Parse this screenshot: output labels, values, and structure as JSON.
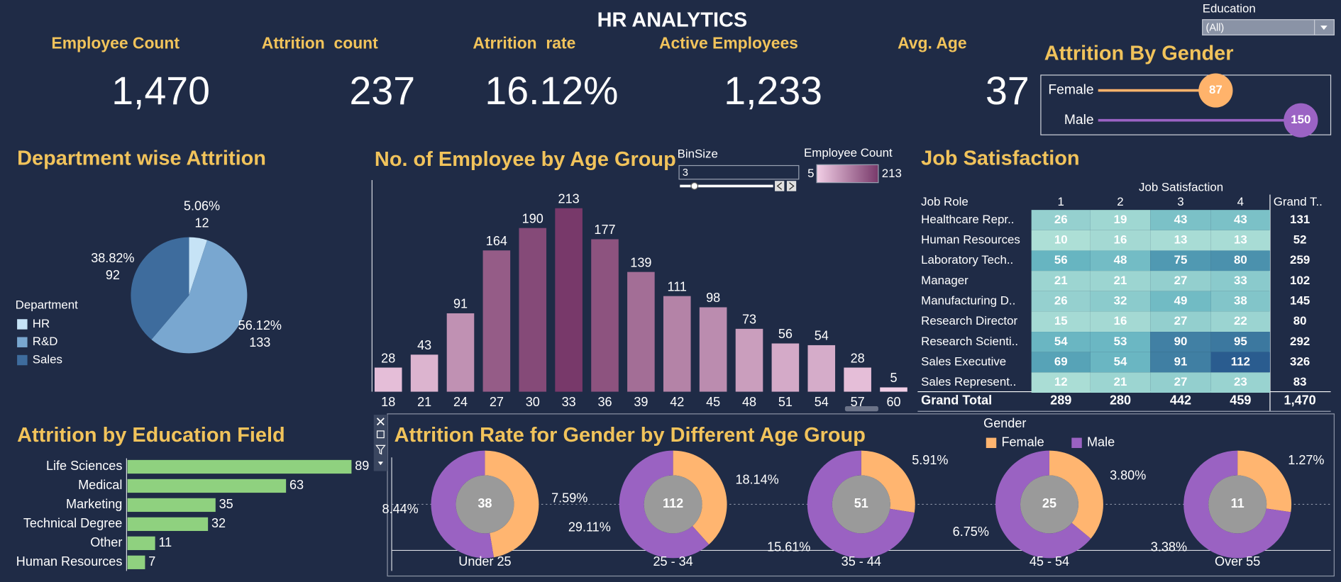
{
  "title": "HR ANALYTICS",
  "filter": {
    "label": "Education",
    "value": "(All)"
  },
  "kpis": [
    {
      "label": "Employee Count",
      "value": "1,470"
    },
    {
      "label": "Attrition  count",
      "value": "237"
    },
    {
      "label": "Atrrition  rate",
      "value": "16.12%"
    },
    {
      "label": "Active Employees",
      "value": "1,233"
    },
    {
      "label": "Avg. Age",
      "value": "37"
    }
  ],
  "chart_data": [
    {
      "type": "lollipop",
      "title": "Attrition By Gender",
      "categories": [
        "Female",
        "Male"
      ],
      "values": [
        87,
        150
      ],
      "colors": [
        "#ffb36b",
        "#9b63c4"
      ]
    },
    {
      "type": "pie",
      "title": "Department wise Attrition",
      "legend_title": "Department",
      "legend": "left",
      "categories": [
        "HR",
        "R&D",
        "Sales"
      ],
      "values": [
        12,
        133,
        92
      ],
      "shares": [
        5.06,
        56.12,
        38.82
      ],
      "share_labels": [
        "5.06%",
        "56.12%",
        "38.82%"
      ],
      "colors": [
        "#c6e3f6",
        "#79a7d0",
        "#3e6c9d"
      ]
    },
    {
      "type": "bar",
      "title": "No. of Employee by Age Group",
      "categories": [
        "18",
        "21",
        "24",
        "27",
        "30",
        "33",
        "36",
        "39",
        "42",
        "45",
        "48",
        "51",
        "54",
        "57",
        "60"
      ],
      "values": [
        28,
        43,
        91,
        164,
        190,
        213,
        177,
        139,
        111,
        98,
        73,
        56,
        54,
        28,
        5
      ],
      "bin_size_label": "BinSize",
      "bin_size": "3",
      "color_title": "Employee Count",
      "color_min": 5,
      "color_max": 213,
      "color_range": [
        "#f2cfe6",
        "#78396a"
      ]
    },
    {
      "type": "heatmap",
      "title": "Job Satisfaction",
      "column_title": "Job Satisfaction",
      "row_title": "Job Role",
      "columns": [
        "1",
        "2",
        "3",
        "4"
      ],
      "total_label": "Grand T..",
      "rows": [
        "Healthcare Repr..",
        "Human Resources",
        "Laboratory Tech..",
        "Manager",
        "Manufacturing D..",
        "Research Director",
        "Research Scienti..",
        "Sales Executive",
        "Sales Represent.."
      ],
      "values": [
        [
          26,
          19,
          43,
          43
        ],
        [
          10,
          16,
          13,
          13
        ],
        [
          56,
          48,
          75,
          80
        ],
        [
          21,
          21,
          27,
          33
        ],
        [
          26,
          32,
          49,
          38
        ],
        [
          15,
          16,
          27,
          22
        ],
        [
          54,
          53,
          90,
          95
        ],
        [
          69,
          54,
          91,
          112
        ],
        [
          12,
          21,
          27,
          23
        ]
      ],
      "row_totals": [
        131,
        52,
        259,
        102,
        145,
        80,
        292,
        326,
        83
      ],
      "grand_total_label": "Grand Total",
      "column_totals": [
        289,
        280,
        442,
        459
      ],
      "grand_total": "1,470",
      "colors": [
        "#addfd6",
        "#5fb0bf",
        "#2a5c8f"
      ]
    },
    {
      "type": "hbar",
      "title": "Attrition by Education Field",
      "categories": [
        "Life Sciences",
        "Medical",
        "Marketing",
        "Technical Degree",
        "Other",
        "Human Resources"
      ],
      "values": [
        89,
        63,
        35,
        32,
        11,
        7
      ],
      "color": "#8fd17f"
    },
    {
      "type": "donut",
      "title": "Attrition Rate for Gender by Different Age Group",
      "legend_title": "Gender",
      "categories": [
        "Under 25",
        "25 - 34",
        "35 - 44",
        "45 - 54",
        "Over 55"
      ],
      "totals": [
        38,
        112,
        51,
        25,
        11
      ],
      "series": [
        {
          "name": "Female",
          "color": "#ffb570",
          "values": [
            7.59,
            18.14,
            5.91,
            3.8,
            1.27
          ],
          "value_labels": [
            "7.59%",
            "18.14%",
            "5.91%",
            "3.80%",
            "1.27%"
          ]
        },
        {
          "name": "Male",
          "color": "#9a62c2",
          "values": [
            8.44,
            29.11,
            15.61,
            6.75,
            3.38
          ],
          "value_labels": [
            "8.44%",
            "29.11%",
            "15.61%",
            "6.75%",
            "3.38%"
          ]
        }
      ]
    }
  ]
}
